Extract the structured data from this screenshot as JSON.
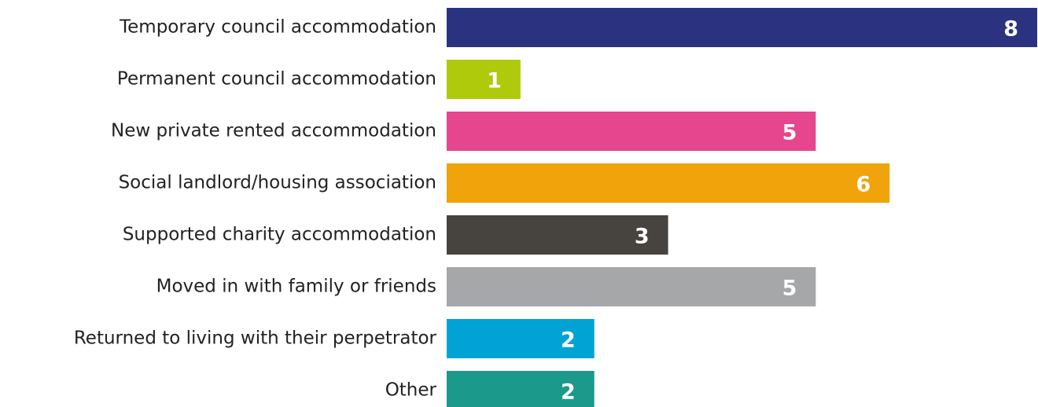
{
  "chart_data": {
    "type": "barh",
    "categories": [
      "Temporary council accommodation",
      "Permanent council accommodation",
      "New private rented accommodation",
      "Social landlord/housing association",
      "Supported charity accommodation",
      "Moved in with family or friends",
      "Returned to living with their perpetrator",
      "Other"
    ],
    "values": [
      8,
      1,
      5,
      6,
      3,
      5,
      2,
      2
    ],
    "colors": [
      "#2b3380",
      "#afca0b",
      "#e5468d",
      "#f0a30a",
      "#47433e",
      "#a6a7a9",
      "#00a3d3",
      "#1b998b"
    ],
    "xlim": [
      0,
      8
    ]
  }
}
